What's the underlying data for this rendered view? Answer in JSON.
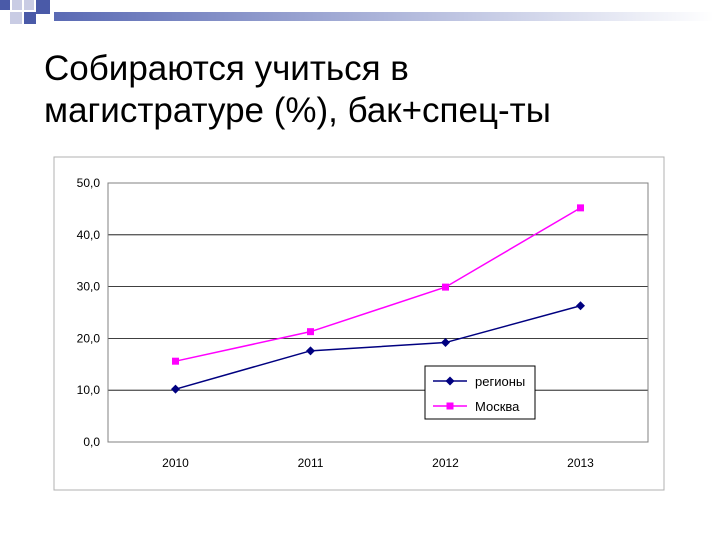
{
  "slide": {
    "title_line1": "Собираются учиться в",
    "title_line2": "магистратуре (%), бак+спец-ты"
  },
  "decoration": {
    "square_colors": [
      "#4a5aa8",
      "#c9cce4",
      "#c9cce4",
      "#4a5aa8",
      "#c9cce4",
      "#4a5aa8"
    ],
    "bar_gradient": [
      "#5a6ab4",
      "#ffffff"
    ]
  },
  "chart_data": {
    "type": "line",
    "categories": [
      "2010",
      "2011",
      "2012",
      "2013"
    ],
    "ylim": [
      0,
      50
    ],
    "yticks": [
      "0,0",
      "10,0",
      "20,0",
      "30,0",
      "40,0",
      "50,0"
    ],
    "grid": true,
    "legend_position": "bottom-right inside",
    "series": [
      {
        "name": "регионы",
        "values": [
          10.2,
          17.6,
          19.2,
          26.3
        ],
        "color": "#000080",
        "marker": "diamond"
      },
      {
        "name": "Москва",
        "values": [
          15.6,
          21.3,
          29.9,
          45.2
        ],
        "color": "#ff00ff",
        "marker": "square"
      }
    ]
  }
}
